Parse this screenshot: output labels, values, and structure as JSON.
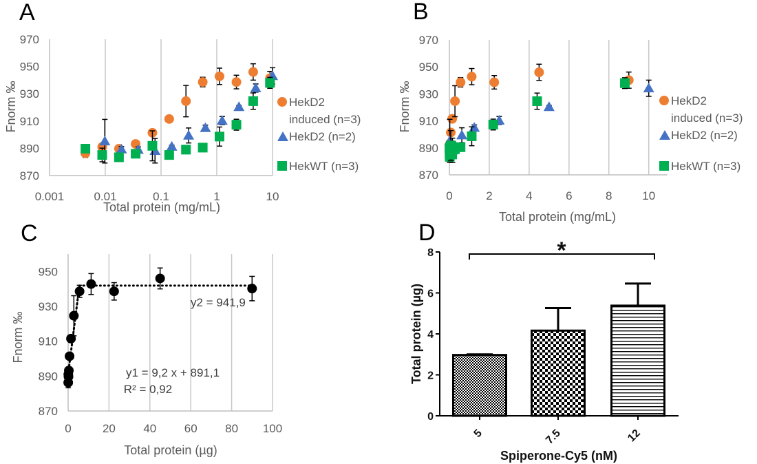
{
  "chart_data": [
    {
      "panel": "A",
      "type": "scatter",
      "xscale": "log",
      "xlim": [
        0.001,
        10
      ],
      "ylim": [
        870,
        970
      ],
      "xticks": [
        "0.001",
        "0.01",
        "0.1",
        "1",
        "10"
      ],
      "yticks": [
        "870",
        "890",
        "910",
        "930",
        "950",
        "970"
      ],
      "xlabel": "Total protein (mg/mL)",
      "ylabel": "Fnorm ‰",
      "grid": "vertical",
      "legend": "right",
      "series": [
        {
          "name": "HekD2 induced (n=3)",
          "color": "#ED7D31",
          "marker": "circle",
          "x": [
            0.0044,
            0.0088,
            0.0176,
            0.035,
            0.07,
            0.14,
            0.28,
            0.56,
            1.12,
            2.25,
            4.5,
            9
          ],
          "y": [
            886.3,
            891,
            889.7,
            893.2,
            901.4,
            911.5,
            924.6,
            938.6,
            942.8,
            938.6,
            946,
            941.4
          ],
          "err": [
            3,
            2,
            1,
            2,
            1,
            2,
            11.5,
            3.5,
            6,
            5,
            6,
            5
          ]
        },
        {
          "name": "HekD2 (n=2)",
          "color": "#4472C4",
          "marker": "triangle",
          "x": [
            0.0098,
            0.0195,
            0.039,
            0.078,
            0.156,
            0.3125,
            0.625,
            1.25,
            2.5,
            5,
            10
          ],
          "y": [
            895.2,
            889.3,
            889,
            888.2,
            891.3,
            899.4,
            905,
            910.3,
            920.4,
            934.2,
            943.1
          ],
          "err": [
            16,
            2,
            2,
            9,
            1,
            5.5,
            2,
            3,
            1,
            3,
            6
          ]
        },
        {
          "name": "HekWT (n=3)",
          "color": "#00B050",
          "marker": "square",
          "x": [
            0.0044,
            0.0088,
            0.0176,
            0.035,
            0.07,
            0.14,
            0.28,
            0.56,
            1.12,
            2.25,
            4.5,
            9
          ],
          "y": [
            889.7,
            885.1,
            883.4,
            886,
            891.8,
            885.1,
            889,
            890.5,
            898.6,
            907.3,
            924.6,
            938
          ],
          "err": [
            2,
            5,
            1,
            3,
            11,
            1,
            1,
            3,
            7,
            4,
            6,
            4
          ]
        }
      ]
    },
    {
      "panel": "B",
      "type": "scatter",
      "xscale": "linear",
      "xlim": [
        0,
        11
      ],
      "ylim": [
        870,
        970
      ],
      "xticks": [
        "0",
        "2",
        "4",
        "6",
        "8",
        "10"
      ],
      "yticks": [
        "870",
        "890",
        "910",
        "930",
        "950",
        "970"
      ],
      "xlabel": "Total protein (mg/mL)",
      "ylabel": "Fnorm ‰",
      "grid": "vertical",
      "legend": "right",
      "series": [
        {
          "name": "HekD2 induced (n=3)",
          "color": "#ED7D31",
          "marker": "circle",
          "x": [
            0.0044,
            0.0088,
            0.0176,
            0.035,
            0.07,
            0.14,
            0.28,
            0.56,
            1.12,
            2.25,
            4.5,
            9
          ],
          "y": [
            886.3,
            891,
            889.7,
            893.2,
            901.4,
            911.5,
            924.6,
            938.6,
            942.8,
            938.6,
            946,
            940.2
          ],
          "err": [
            3,
            2,
            1,
            2,
            1,
            2,
            11.5,
            3.5,
            6,
            5,
            6,
            6
          ]
        },
        {
          "name": "HekD2 (n=2)",
          "color": "#4472C4",
          "marker": "triangle",
          "x": [
            0.0195,
            0.039,
            0.078,
            0.156,
            0.3125,
            0.625,
            1.25,
            2.5,
            5,
            10
          ],
          "y": [
            895.2,
            889.3,
            889,
            888.2,
            891.3,
            899.4,
            905,
            910.3,
            920.4,
            934.2
          ],
          "err": [
            16,
            2,
            2,
            9,
            1,
            5.5,
            2,
            3,
            1,
            6
          ]
        },
        {
          "name": "HekWT (n=3)",
          "color": "#00B050",
          "marker": "square",
          "x": [
            0.0044,
            0.0088,
            0.0176,
            0.035,
            0.07,
            0.14,
            0.28,
            0.56,
            1.12,
            2.2,
            4.4,
            8.8
          ],
          "y": [
            889.7,
            885.1,
            883.4,
            886,
            891.8,
            885.1,
            889,
            890.5,
            898.6,
            907.3,
            924.6,
            938
          ],
          "err": [
            2,
            5,
            1,
            3,
            11,
            1,
            1,
            3,
            7,
            4,
            6,
            4
          ]
        }
      ]
    },
    {
      "panel": "C",
      "type": "scatter",
      "xscale": "linear",
      "xlim": [
        0,
        100
      ],
      "ylim": [
        870,
        960
      ],
      "xticks": [
        "0",
        "20",
        "40",
        "60",
        "80",
        "100"
      ],
      "yticks": [
        "870",
        "890",
        "910",
        "930",
        "950"
      ],
      "xlabel": "Total protein (µg)",
      "ylabel": "Fnorm ‰",
      "grid": "vertical",
      "series": [
        {
          "color": "#000000",
          "marker": "circle",
          "x": [
            0.044,
            0.088,
            0.175,
            0.35,
            0.7,
            1.4,
            2.8,
            5.6,
            11.25,
            22.5,
            45,
            90
          ],
          "y": [
            886.3,
            891,
            889.7,
            893.2,
            901.4,
            911.5,
            924.6,
            938.6,
            942.8,
            938.6,
            946,
            940.2
          ],
          "err": [
            3,
            2,
            1,
            2,
            1,
            2,
            11.5,
            3.5,
            6,
            5,
            6,
            7
          ]
        }
      ],
      "fits": [
        {
          "label": "y1 = 9,2 x + 891,1",
          "r2_label": "R² = 0,92",
          "slope": 9.2,
          "intercept": 891.1,
          "style": "dotted"
        },
        {
          "label": "y2 = 941,9",
          "value": 941.9,
          "style": "dotted"
        }
      ]
    },
    {
      "panel": "D",
      "type": "bar",
      "categories": [
        "5",
        "7.5",
        "12"
      ],
      "values": [
        2.97,
        4.16,
        5.38
      ],
      "errors": [
        0.03,
        1.1,
        1.08
      ],
      "patterns": [
        "fine-checker",
        "coarse-checker",
        "horizontal-lines"
      ],
      "ylim": [
        0,
        8
      ],
      "yticks": [
        "0",
        "2",
        "4",
        "6",
        "8"
      ],
      "xlabel": "Spiperone-Cy5 (nM)",
      "ylabel": "Total protein (µg)",
      "significance": {
        "from": "5",
        "to": "12",
        "label": "*"
      }
    }
  ]
}
